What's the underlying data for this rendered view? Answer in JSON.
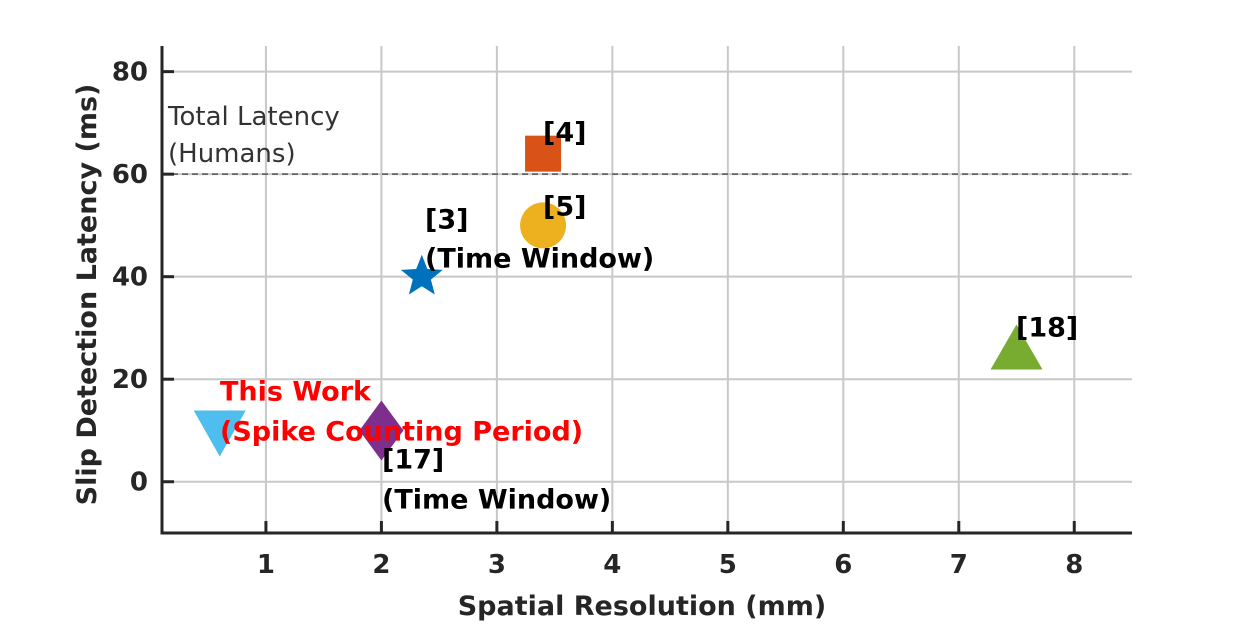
{
  "chart_data": {
    "type": "scatter",
    "title": "",
    "xlabel": "Spatial Resolution (mm)",
    "ylabel": "Slip Detection Latency (ms)",
    "xlim": [
      0.1,
      8.5
    ],
    "ylim": [
      -10,
      85
    ],
    "xticks": [
      1,
      2,
      3,
      4,
      5,
      6,
      7,
      8
    ],
    "yticks": [
      0,
      20,
      40,
      60,
      80
    ],
    "grid": true,
    "reference_line": {
      "y": 60,
      "label_lines": [
        "Total Latency",
        "(Humans)"
      ]
    },
    "points": [
      {
        "key": "work",
        "x": 0.6,
        "y": 10,
        "marker": "triangle-down",
        "color": "#4DBEEE",
        "label_lines": [
          "This Work",
          "(Spike Counting Period)"
        ],
        "label_color": "#FF0000"
      },
      {
        "key": "ref17",
        "x": 2.0,
        "y": 10,
        "marker": "diamond",
        "color": "#7E2F8E",
        "label_lines": [
          "[17]",
          "(Time Window)"
        ],
        "label_color": "#000000"
      },
      {
        "key": "ref3",
        "x": 2.35,
        "y": 40,
        "marker": "star",
        "color": "#0072BD",
        "label_lines": [
          "[3]",
          "(Time Window)"
        ],
        "label_color": "#000000"
      },
      {
        "key": "ref5",
        "x": 3.4,
        "y": 50,
        "marker": "circle",
        "color": "#EDB120",
        "label_lines": [
          "[5]"
        ],
        "label_color": "#000000"
      },
      {
        "key": "ref4",
        "x": 3.4,
        "y": 64,
        "marker": "square",
        "color": "#D95319",
        "label_lines": [
          "[4]"
        ],
        "label_color": "#000000"
      },
      {
        "key": "ref18",
        "x": 7.5,
        "y": 26,
        "marker": "triangle-up",
        "color": "#77AC30",
        "label_lines": [
          "[18]"
        ],
        "label_color": "#000000"
      }
    ]
  }
}
